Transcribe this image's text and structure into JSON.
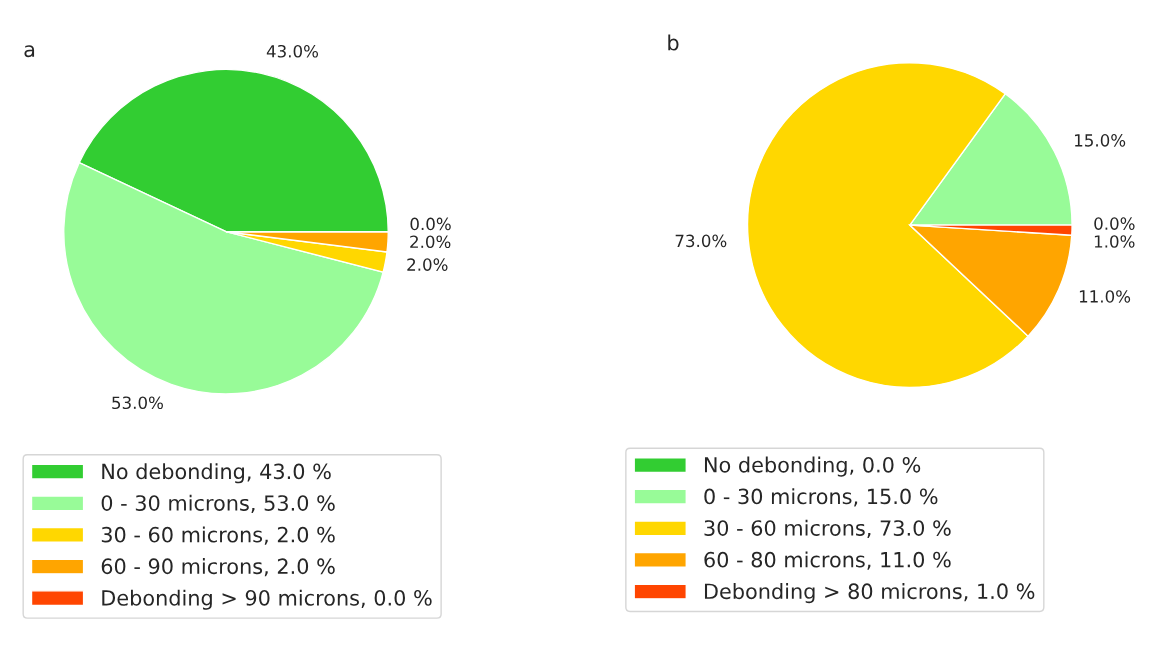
{
  "chart_data": [
    {
      "type": "pie",
      "title": "a",
      "categories": [
        "No debonding, 43.0 %",
        "0 - 30 microns, 53.0 %",
        "30 - 60 microns, 2.0 %",
        "60 - 90 microns, 2.0 %",
        "Debonding > 90 microns, 0.0 %"
      ],
      "values": [
        43,
        53,
        2,
        2,
        0
      ],
      "colors": [
        "#32cd32",
        "#98fb98",
        "#ffd700",
        "#ffa500",
        "#ff4500"
      ],
      "value_labels": [
        "43.0%",
        "53.0%",
        "2.0%",
        "2.0%",
        "0.0%"
      ],
      "legend": "bottom"
    },
    {
      "type": "pie",
      "title": "b",
      "categories": [
        "No debonding, 0.0 %",
        "0 - 30 microns, 15.0 %",
        "30 - 60 microns, 73.0 %",
        "60 - 80 microns, 11.0 %",
        "Debonding > 80 microns, 1.0 %"
      ],
      "values": [
        0,
        15,
        73,
        11,
        1
      ],
      "colors": [
        "#32cd32",
        "#98fb98",
        "#ffd700",
        "#ffa500",
        "#ff4500"
      ],
      "value_labels": [
        "0.0%",
        "15.0%",
        "73.0%",
        "11.0%",
        "1.0%"
      ],
      "legend": "bottom"
    }
  ]
}
